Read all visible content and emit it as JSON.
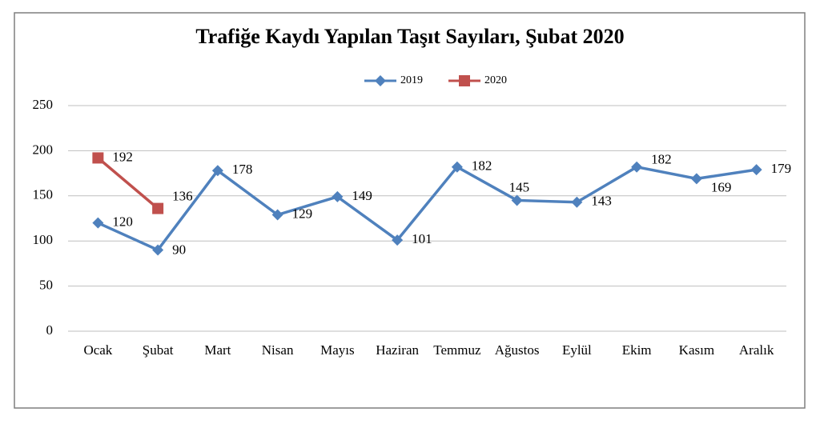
{
  "chart_data": {
    "type": "line",
    "title": "Trafiğe Kaydı Yapılan Taşıt Sayıları, Şubat 2020",
    "categories": [
      "Ocak",
      "Şubat",
      "Mart",
      "Nisan",
      "Mayıs",
      "Haziran",
      "Temmuz",
      "Ağustos",
      "Eylül",
      "Ekim",
      "Kasım",
      "Aralık"
    ],
    "series": [
      {
        "name": "2019",
        "color": "#4f81bd",
        "values": [
          120,
          90,
          178,
          129,
          149,
          101,
          182,
          145,
          143,
          182,
          169,
          179
        ]
      },
      {
        "name": "2020",
        "color": "#c0504d",
        "values": [
          192,
          136,
          null,
          null,
          null,
          null,
          null,
          null,
          null,
          null,
          null,
          null
        ]
      }
    ],
    "ylim": [
      0,
      250
    ],
    "yticks": [
      0,
      50,
      100,
      150,
      200,
      250
    ],
    "grid": true,
    "legend": "top"
  }
}
